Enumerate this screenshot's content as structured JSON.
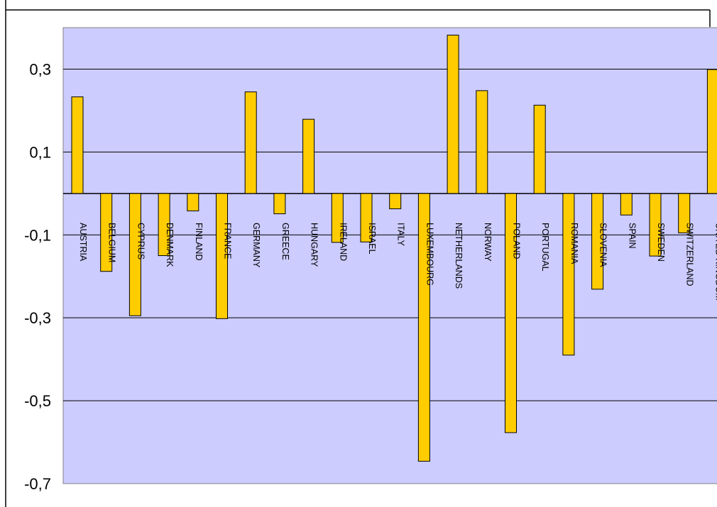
{
  "chart_data": {
    "type": "bar",
    "title": "",
    "xlabel": "",
    "ylabel": "",
    "ylim": [
      -0.7,
      0.4
    ],
    "y_ticks": [
      0.3,
      0.1,
      -0.1,
      -0.3,
      -0.5,
      -0.7
    ],
    "y_tick_labels": [
      "0,3",
      "0,1",
      "-0,1",
      "-0,3",
      "-0,5",
      "-0,7"
    ],
    "grid": true,
    "legend": "none",
    "categories": [
      "AUSTRIA",
      "BELGIUM",
      "CYPRUS",
      "DENMARK",
      "FINLAND",
      "FRANCE",
      "GERMANY",
      "GREECE",
      "HUNGARY",
      "IRELAND",
      "ISRAEL",
      "ITALY",
      "LUXEMBOURG",
      "NETHERLANDS",
      "NORWAY",
      "POLAND",
      "PORTUGAL",
      "ROMANIA",
      "SLOVENIA",
      "SPAIN",
      "SWEDEN",
      "SWITZERLAND",
      "UNITED KINGDOM"
    ],
    "values": [
      0.233,
      -0.188,
      -0.295,
      -0.15,
      -0.042,
      -0.302,
      0.245,
      -0.049,
      0.179,
      -0.118,
      -0.117,
      -0.037,
      -0.646,
      0.382,
      0.248,
      -0.577,
      0.213,
      -0.39,
      -0.231,
      -0.052,
      -0.151,
      -0.095,
      0.299
    ],
    "colors": {
      "bar": "#ffcc00",
      "bar_border": "#000000",
      "plot_background": "#ccccff"
    }
  }
}
